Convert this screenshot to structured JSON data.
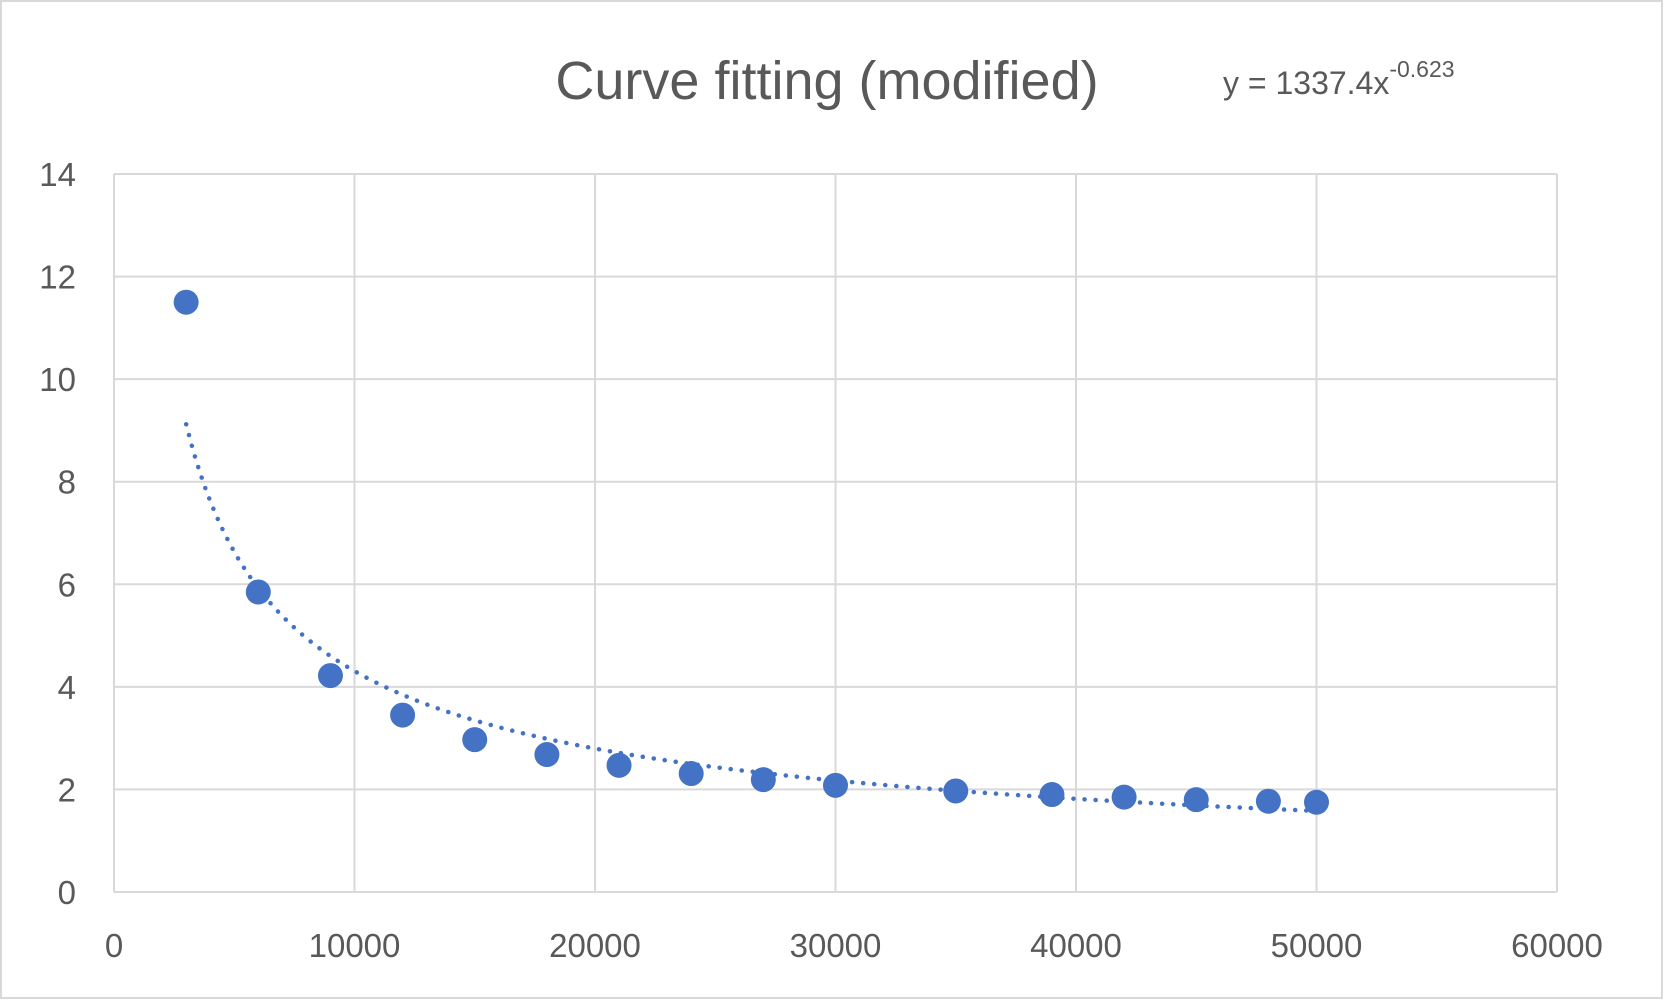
{
  "colors": {
    "marker": "#4472c4",
    "trendline": "#4472c4",
    "gridline": "#d9d9d9",
    "text": "#595959",
    "background": "#ffffff"
  },
  "chart_data": {
    "type": "scatter",
    "title": "Curve fitting (modified)",
    "xlabel": "",
    "ylabel": "",
    "xlim": [
      0,
      60000
    ],
    "ylim": [
      0,
      14
    ],
    "x_ticks": [
      "0",
      "10000",
      "20000",
      "30000",
      "40000",
      "50000",
      "60000"
    ],
    "y_ticks": [
      "0",
      "2",
      "4",
      "6",
      "8",
      "10",
      "12",
      "14"
    ],
    "grid": true,
    "legend": "none",
    "series": [
      {
        "points": [
          {
            "x": 3000,
            "y": 11.5
          },
          {
            "x": 6000,
            "y": 5.85
          },
          {
            "x": 9000,
            "y": 4.22
          },
          {
            "x": 12000,
            "y": 3.45
          },
          {
            "x": 15000,
            "y": 2.97
          },
          {
            "x": 18000,
            "y": 2.68
          },
          {
            "x": 21000,
            "y": 2.47
          },
          {
            "x": 24000,
            "y": 2.31
          },
          {
            "x": 27000,
            "y": 2.19
          },
          {
            "x": 30000,
            "y": 2.08
          },
          {
            "x": 35000,
            "y": 1.97
          },
          {
            "x": 39000,
            "y": 1.9
          },
          {
            "x": 42000,
            "y": 1.85
          },
          {
            "x": 45000,
            "y": 1.8
          },
          {
            "x": 48000,
            "y": 1.77
          },
          {
            "x": 50000,
            "y": 1.75
          }
        ]
      }
    ],
    "trendline": {
      "type": "power",
      "coefficient": 1337.4,
      "exponent": -0.623,
      "x_range": [
        3000,
        50000
      ],
      "style": "dotted",
      "equation": {
        "prefix": "y = 1337.4x",
        "exponent_text": "-0.623"
      }
    }
  }
}
